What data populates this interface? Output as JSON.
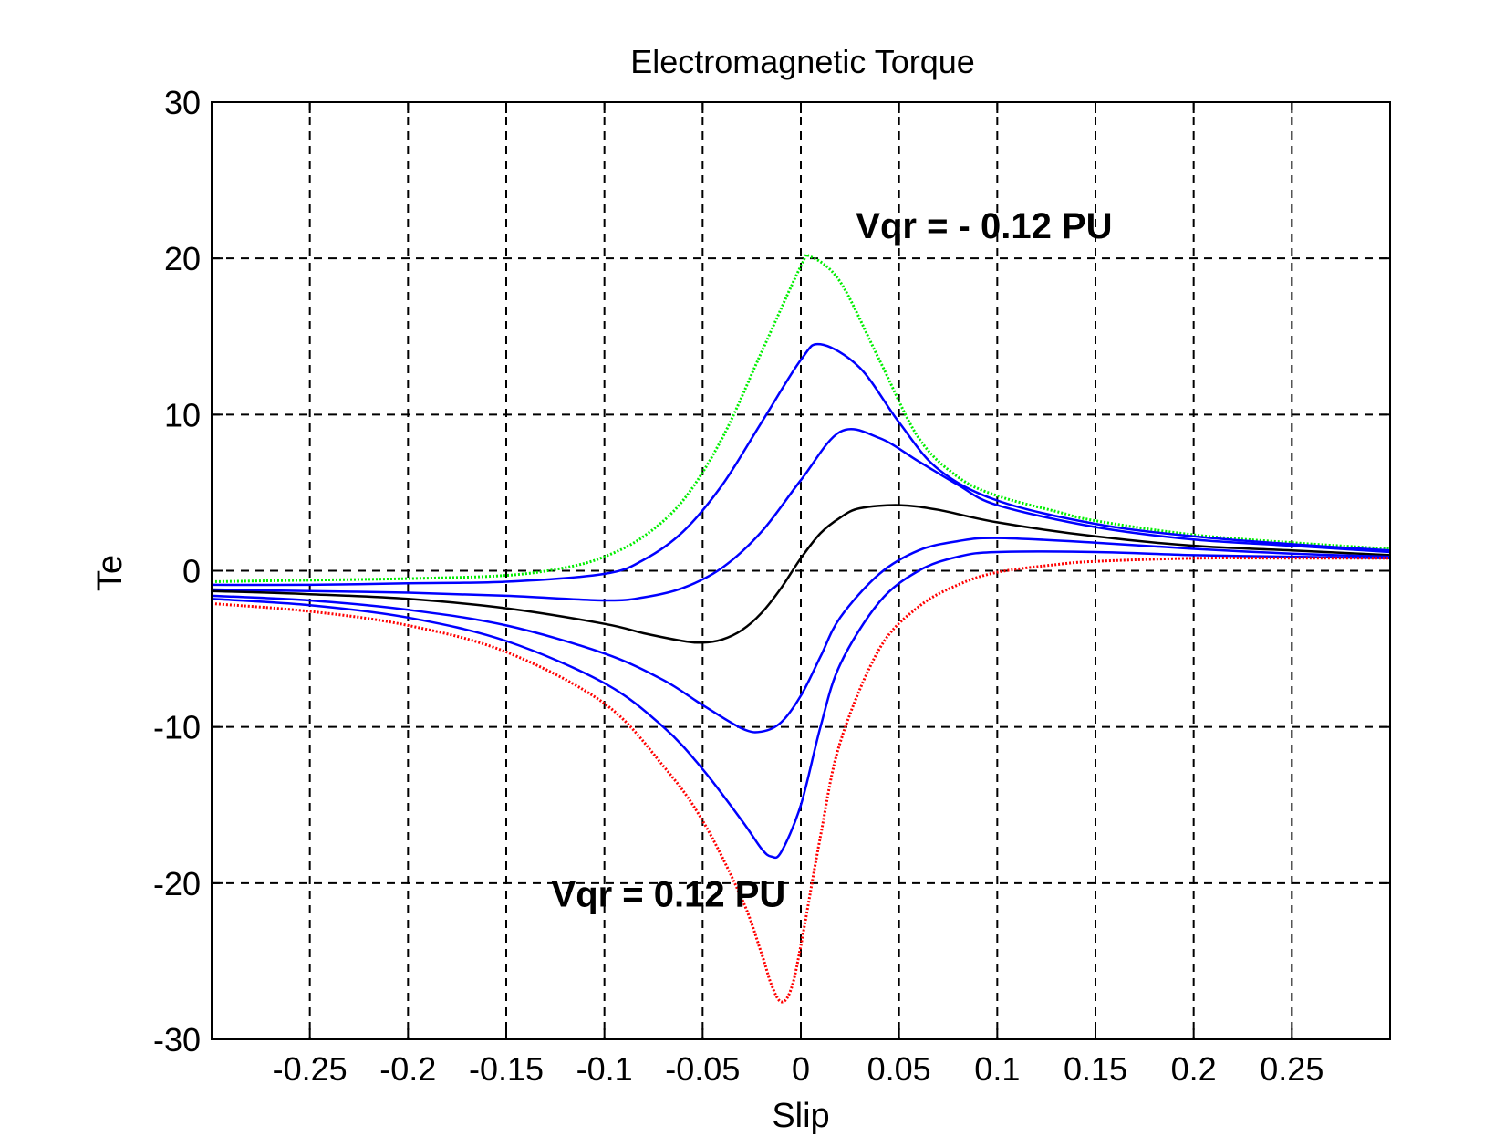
{
  "chart_data": {
    "type": "line",
    "title": "Electromagnetic Torque",
    "xlabel": "Slip",
    "ylabel": "Te",
    "xlim": [
      -0.3,
      0.3
    ],
    "ylim": [
      -30,
      30
    ],
    "xticks": [
      -0.25,
      -0.2,
      -0.15,
      -0.1,
      -0.05,
      0,
      0.05,
      0.1,
      0.15,
      0.2,
      0.25
    ],
    "xtick_labels": [
      "-0.25",
      "-0.2",
      "-0.15",
      "-0.1",
      "-0.05",
      "0",
      "0.05",
      "0.1",
      "0.15",
      "0.2",
      "0.25"
    ],
    "yticks": [
      -30,
      -20,
      -10,
      0,
      10,
      20,
      30
    ],
    "ytick_labels": [
      "-30",
      "-20",
      "-10",
      "0",
      "10",
      "20",
      "30"
    ],
    "grid": true,
    "grid_style": "dashed",
    "annotations": [
      {
        "text": "Vqr = - 0.12 PU",
        "x": 0.028,
        "y": 21.3
      },
      {
        "text": "Vqr =  0.12 PU",
        "x": -0.127,
        "y": -21.5
      }
    ],
    "series": [
      {
        "color": "#00ee00",
        "style": "dotted",
        "x": [
          -0.3,
          -0.25,
          -0.2,
          -0.15,
          -0.12,
          -0.1,
          -0.08,
          -0.06,
          -0.04,
          -0.02,
          0,
          0.005,
          0.02,
          0.04,
          0.06,
          0.08,
          0.1,
          0.13,
          0.15,
          0.2,
          0.25,
          0.3
        ],
        "y": [
          -0.7,
          -0.6,
          -0.5,
          -0.3,
          0.2,
          0.9,
          2.2,
          4.5,
          8.5,
          14.0,
          19.5,
          20.1,
          18.5,
          13.5,
          8.5,
          6.0,
          4.8,
          3.8,
          3.2,
          2.3,
          1.8,
          1.4
        ]
      },
      {
        "color": "#0000ff",
        "style": "solid",
        "x": [
          -0.3,
          -0.25,
          -0.2,
          -0.15,
          -0.1,
          -0.08,
          -0.06,
          -0.04,
          -0.02,
          0,
          0.01,
          0.03,
          0.05,
          0.07,
          0.1,
          0.15,
          0.2,
          0.25,
          0.3
        ],
        "y": [
          -0.9,
          -0.9,
          -0.8,
          -0.7,
          -0.2,
          0.7,
          2.5,
          5.5,
          9.5,
          13.5,
          14.5,
          13.0,
          9.5,
          6.5,
          4.5,
          3.0,
          2.2,
          1.7,
          1.3
        ]
      },
      {
        "color": "#0000ff",
        "style": "solid",
        "x": [
          -0.3,
          -0.25,
          -0.2,
          -0.15,
          -0.1,
          -0.08,
          -0.06,
          -0.04,
          -0.02,
          0,
          0.02,
          0.04,
          0.06,
          0.08,
          0.1,
          0.15,
          0.2,
          0.25,
          0.3
        ],
        "y": [
          -1.2,
          -1.3,
          -1.4,
          -1.6,
          -1.9,
          -1.7,
          -1.1,
          0.2,
          2.5,
          5.8,
          8.9,
          8.5,
          7.0,
          5.5,
          4.2,
          2.8,
          2.0,
          1.6,
          1.2
        ]
      },
      {
        "color": "#000000",
        "style": "solid",
        "x": [
          -0.3,
          -0.25,
          -0.2,
          -0.15,
          -0.1,
          -0.08,
          -0.06,
          -0.05,
          -0.04,
          -0.03,
          -0.02,
          -0.01,
          0,
          0.01,
          0.02,
          0.03,
          0.05,
          0.07,
          0.1,
          0.15,
          0.2,
          0.25,
          0.3
        ],
        "y": [
          -1.3,
          -1.5,
          -1.8,
          -2.4,
          -3.4,
          -4.0,
          -4.5,
          -4.6,
          -4.4,
          -3.8,
          -2.7,
          -1.1,
          0.8,
          2.4,
          3.4,
          4.0,
          4.2,
          3.9,
          3.1,
          2.2,
          1.6,
          1.3,
          1.0
        ]
      },
      {
        "color": "#0000ff",
        "style": "solid",
        "x": [
          -0.3,
          -0.25,
          -0.2,
          -0.15,
          -0.1,
          -0.07,
          -0.05,
          -0.03,
          -0.02,
          -0.01,
          0,
          0.01,
          0.02,
          0.04,
          0.06,
          0.08,
          0.1,
          0.15,
          0.2,
          0.25,
          0.3
        ],
        "y": [
          -1.6,
          -1.9,
          -2.5,
          -3.5,
          -5.3,
          -7.0,
          -8.6,
          -10.1,
          -10.3,
          -9.7,
          -8.0,
          -5.5,
          -3.0,
          -0.2,
          1.3,
          1.9,
          2.1,
          1.8,
          1.4,
          1.1,
          0.9
        ]
      },
      {
        "color": "#0000ff",
        "style": "solid",
        "x": [
          -0.3,
          -0.25,
          -0.2,
          -0.15,
          -0.1,
          -0.07,
          -0.05,
          -0.03,
          -0.02,
          -0.015,
          -0.01,
          0,
          0.01,
          0.02,
          0.04,
          0.06,
          0.08,
          0.1,
          0.15,
          0.2,
          0.25,
          0.3
        ],
        "y": [
          -1.8,
          -2.2,
          -3.0,
          -4.5,
          -7.2,
          -10.0,
          -12.7,
          -16.0,
          -17.8,
          -18.3,
          -18.0,
          -15.0,
          -10.0,
          -6.0,
          -2.0,
          0.0,
          0.9,
          1.2,
          1.2,
          1.0,
          0.9,
          0.8
        ]
      },
      {
        "color": "#ff0000",
        "style": "dotted",
        "x": [
          -0.3,
          -0.25,
          -0.2,
          -0.15,
          -0.1,
          -0.07,
          -0.05,
          -0.03,
          -0.02,
          -0.015,
          -0.01,
          -0.005,
          0,
          0.01,
          0.02,
          0.04,
          0.06,
          0.08,
          0.1,
          0.13,
          0.15,
          0.2,
          0.25,
          0.3
        ],
        "y": [
          -2.1,
          -2.6,
          -3.5,
          -5.2,
          -8.5,
          -12.5,
          -16.0,
          -21.0,
          -24.5,
          -26.5,
          -27.6,
          -26.8,
          -24.0,
          -17.0,
          -11.0,
          -5.0,
          -2.3,
          -0.9,
          -0.1,
          0.4,
          0.6,
          0.8,
          0.8,
          0.8
        ]
      }
    ]
  }
}
